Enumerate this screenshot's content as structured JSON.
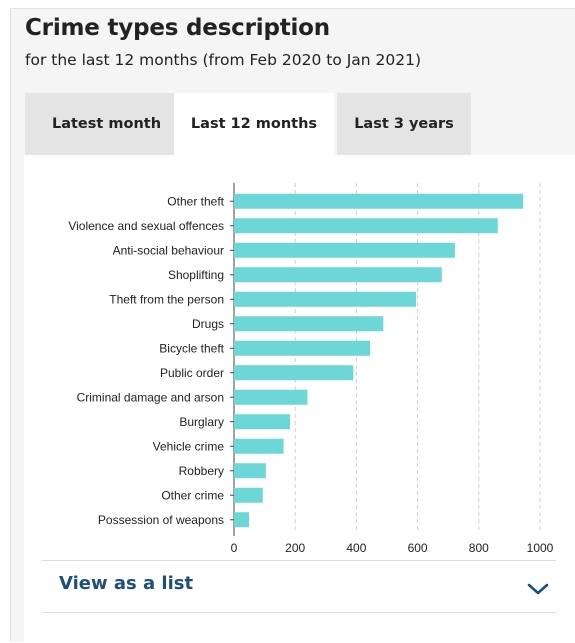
{
  "header": {
    "title": "Crime types description",
    "subtitle": "for the last 12 months (from Feb 2020 to Jan 2021)"
  },
  "tabs": [
    {
      "label": "Latest month",
      "active": false
    },
    {
      "label": "Last 12 months",
      "active": true
    },
    {
      "label": "Last 3 years",
      "active": false
    }
  ],
  "footer": {
    "view_list_label": "View as a list",
    "chevron_icon": "chevron-down-icon"
  },
  "colors": {
    "bar": "#6dd6d6",
    "link": "#1e4f7a",
    "tab_inactive": "#e4e4e4"
  },
  "chart_data": {
    "type": "bar",
    "orientation": "horizontal",
    "categories": [
      "Other theft",
      "Violence and sexual offences",
      "Anti-social behaviour",
      "Shoplifting",
      "Theft from the person",
      "Drugs",
      "Bicycle theft",
      "Public order",
      "Criminal damage and arson",
      "Burglary",
      "Vehicle crime",
      "Robbery",
      "Other crime",
      "Possession of weapons"
    ],
    "values": [
      945,
      862,
      722,
      679,
      595,
      488,
      445,
      390,
      240,
      183,
      162,
      104,
      94,
      49
    ],
    "xlim": [
      0,
      1000
    ],
    "xticks": [
      0,
      200,
      400,
      600,
      800,
      1000
    ],
    "grid": true,
    "title": "",
    "xlabel": "",
    "ylabel": ""
  }
}
